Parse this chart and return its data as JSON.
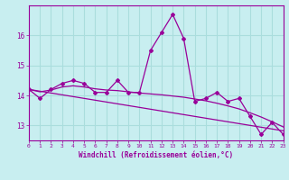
{
  "xlabel": "Windchill (Refroidissement éolien,°C)",
  "background_color": "#c8eef0",
  "grid_color": "#aadddd",
  "line_color": "#990099",
  "x_values": [
    0,
    1,
    2,
    3,
    4,
    5,
    6,
    7,
    8,
    9,
    10,
    11,
    12,
    13,
    14,
    15,
    16,
    17,
    18,
    19,
    20,
    21,
    22,
    23
  ],
  "y_main": [
    14.2,
    13.9,
    14.2,
    14.4,
    14.5,
    14.4,
    14.1,
    14.1,
    14.5,
    14.1,
    14.1,
    15.5,
    16.1,
    16.7,
    15.9,
    13.8,
    13.9,
    14.1,
    13.8,
    13.9,
    13.3,
    12.7,
    13.1,
    12.7
  ],
  "y_smooth": [
    14.2,
    14.12,
    14.18,
    14.28,
    14.32,
    14.28,
    14.22,
    14.18,
    14.16,
    14.12,
    14.08,
    14.05,
    14.02,
    13.98,
    13.94,
    13.88,
    13.82,
    13.74,
    13.65,
    13.55,
    13.42,
    13.28,
    13.12,
    12.95
  ],
  "y_linear": [
    14.2,
    14.14,
    14.08,
    14.02,
    13.96,
    13.9,
    13.84,
    13.78,
    13.72,
    13.66,
    13.6,
    13.54,
    13.48,
    13.42,
    13.36,
    13.3,
    13.24,
    13.18,
    13.12,
    13.06,
    13.0,
    12.94,
    12.88,
    12.82
  ],
  "ylim": [
    12.5,
    17.0
  ],
  "yticks": [
    13,
    14,
    15,
    16
  ],
  "xticks": [
    0,
    1,
    2,
    3,
    4,
    5,
    6,
    7,
    8,
    9,
    10,
    11,
    12,
    13,
    14,
    15,
    16,
    17,
    18,
    19,
    20,
    21,
    22,
    23
  ]
}
